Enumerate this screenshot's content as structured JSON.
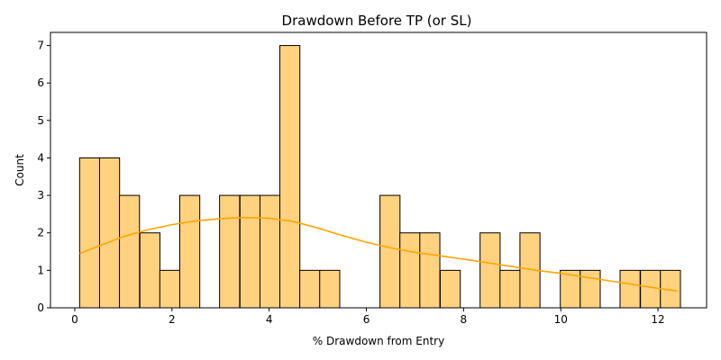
{
  "chart_data": {
    "type": "bar",
    "subtype": "histogram-with-kde",
    "title": "Drawdown Before TP (or SL)",
    "xlabel": "% Drawdown from Entry",
    "ylabel": "Count",
    "xlim": [
      -0.5,
      13.0
    ],
    "ylim": [
      0,
      7.35
    ],
    "xticks": [
      0,
      2,
      4,
      6,
      8,
      10,
      12
    ],
    "yticks": [
      0,
      1,
      2,
      3,
      4,
      5,
      6,
      7
    ],
    "bin_width": 0.412,
    "bins": [
      {
        "start": 0.1,
        "count": 4
      },
      {
        "start": 0.51,
        "count": 4
      },
      {
        "start": 0.92,
        "count": 3
      },
      {
        "start": 1.34,
        "count": 2
      },
      {
        "start": 1.75,
        "count": 1
      },
      {
        "start": 2.16,
        "count": 3
      },
      {
        "start": 2.57,
        "count": 0
      },
      {
        "start": 2.98,
        "count": 3
      },
      {
        "start": 3.4,
        "count": 3
      },
      {
        "start": 3.81,
        "count": 3
      },
      {
        "start": 4.22,
        "count": 7
      },
      {
        "start": 4.63,
        "count": 1
      },
      {
        "start": 5.04,
        "count": 1
      },
      {
        "start": 5.46,
        "count": 0
      },
      {
        "start": 5.87,
        "count": 0
      },
      {
        "start": 6.28,
        "count": 3
      },
      {
        "start": 6.69,
        "count": 2
      },
      {
        "start": 7.1,
        "count": 2
      },
      {
        "start": 7.52,
        "count": 1
      },
      {
        "start": 7.93,
        "count": 0
      },
      {
        "start": 8.34,
        "count": 2
      },
      {
        "start": 8.75,
        "count": 1
      },
      {
        "start": 9.16,
        "count": 2
      },
      {
        "start": 9.58,
        "count": 0
      },
      {
        "start": 9.99,
        "count": 1
      },
      {
        "start": 10.4,
        "count": 1
      },
      {
        "start": 10.81,
        "count": 0
      },
      {
        "start": 11.22,
        "count": 1
      },
      {
        "start": 11.64,
        "count": 1
      },
      {
        "start": 12.05,
        "count": 1
      }
    ],
    "kde": {
      "x": [
        0.1,
        0.5,
        1.0,
        1.5,
        2.0,
        2.5,
        3.0,
        3.5,
        4.0,
        4.5,
        5.0,
        5.5,
        6.0,
        6.5,
        7.0,
        7.5,
        8.0,
        8.5,
        9.0,
        9.5,
        10.0,
        10.5,
        11.0,
        11.5,
        12.0,
        12.4
      ],
      "y": [
        1.45,
        1.65,
        1.9,
        2.08,
        2.22,
        2.32,
        2.38,
        2.41,
        2.39,
        2.3,
        2.13,
        1.93,
        1.75,
        1.6,
        1.48,
        1.39,
        1.3,
        1.2,
        1.1,
        1.0,
        0.92,
        0.82,
        0.72,
        0.62,
        0.52,
        0.45
      ]
    },
    "colors": {
      "bar_fill": "#ffd280",
      "bar_edge": "#000000",
      "kde_line": "#ffa500"
    },
    "grid": false,
    "legend": "none"
  }
}
